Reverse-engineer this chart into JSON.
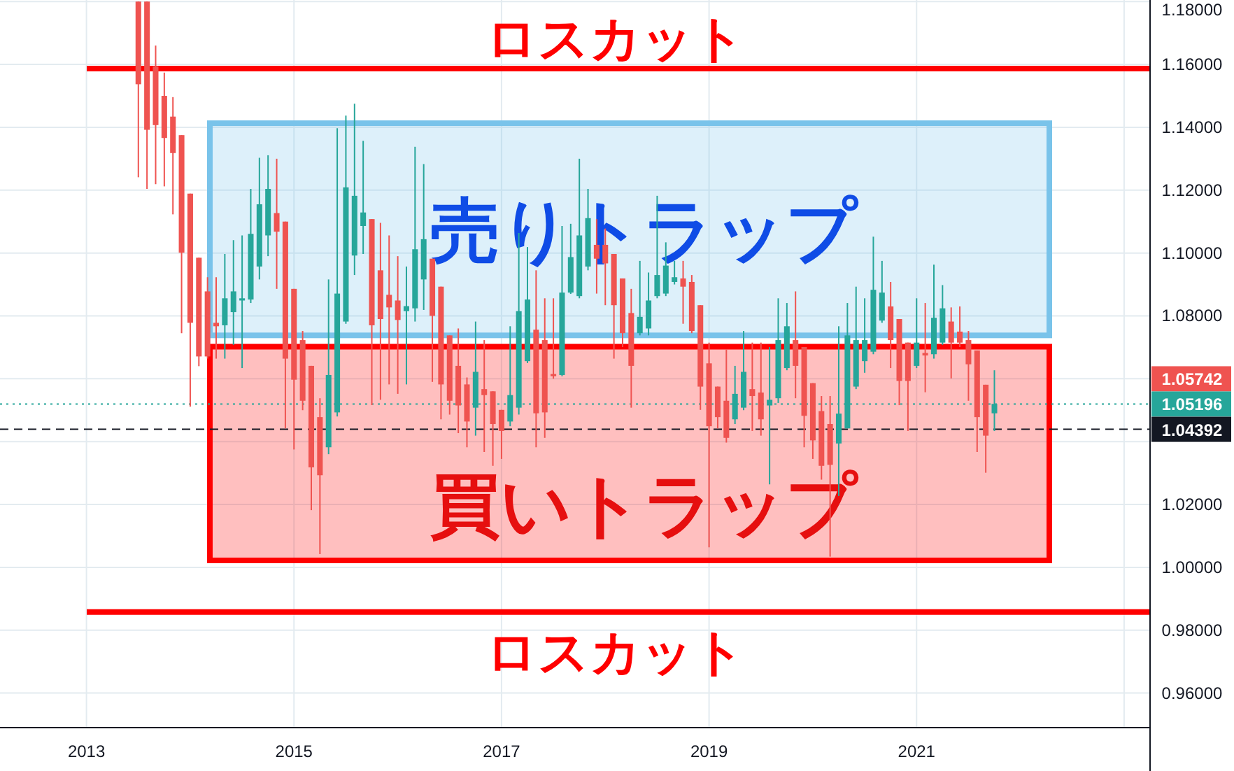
{
  "chart_data": {
    "type": "candlestick",
    "x": [
      "2013-07",
      "2013-08",
      "2013-09",
      "2013-10",
      "2013-11",
      "2013-12",
      "2014-01",
      "2014-02",
      "2014-03",
      "2014-04",
      "2014-05",
      "2014-06",
      "2014-07",
      "2014-08",
      "2014-09",
      "2014-10",
      "2014-11",
      "2014-12",
      "2015-01",
      "2015-02",
      "2015-03",
      "2015-04",
      "2015-05",
      "2015-06",
      "2015-07",
      "2015-08",
      "2015-09",
      "2015-10",
      "2015-11",
      "2015-12",
      "2016-01",
      "2016-02",
      "2016-03",
      "2016-04",
      "2016-05",
      "2016-06",
      "2016-07",
      "2016-08",
      "2016-09",
      "2016-10",
      "2016-11",
      "2016-12",
      "2017-01",
      "2017-02",
      "2017-03",
      "2017-04",
      "2017-05",
      "2017-06",
      "2017-07",
      "2017-08",
      "2017-09",
      "2017-10",
      "2017-11",
      "2017-12",
      "2018-01",
      "2018-02",
      "2018-03",
      "2018-04",
      "2018-05",
      "2018-06",
      "2018-07",
      "2018-08",
      "2018-09",
      "2018-10",
      "2018-11",
      "2018-12",
      "2019-01",
      "2019-02",
      "2019-03",
      "2019-04",
      "2019-05",
      "2019-06",
      "2019-07",
      "2019-08",
      "2019-09",
      "2019-10",
      "2019-11",
      "2019-12",
      "2020-01",
      "2020-02",
      "2020-03",
      "2020-04",
      "2020-05",
      "2020-06",
      "2020-07",
      "2020-08",
      "2020-09",
      "2020-10",
      "2020-11",
      "2020-12",
      "2021-01",
      "2021-02",
      "2021-03",
      "2021-04",
      "2021-05",
      "2021-06",
      "2021-07",
      "2021-08",
      "2021-09",
      "2021-10"
    ],
    "ohlc": [
      [
        1.18,
        1.18,
        1.1241,
        1.1537
      ],
      [
        1.18,
        1.18,
        1.1204,
        1.1392
      ],
      [
        1.1594,
        1.166,
        1.1219,
        1.1407
      ],
      [
        1.15,
        1.1574,
        1.1212,
        1.1366
      ],
      [
        1.1434,
        1.1496,
        1.1123,
        1.1318
      ],
      [
        1.1375,
        1.1375,
        1.0745,
        1.1001
      ],
      [
        1.1189,
        1.1189,
        1.0511,
        1.0778
      ],
      [
        1.0985,
        1.0985,
        1.064,
        1.0671
      ],
      [
        1.0878,
        1.0923,
        1.0664,
        1.0671
      ],
      [
        1.0778,
        1.0923,
        1.0664,
        1.0767
      ],
      [
        1.077,
        1.0997,
        1.0664,
        1.0856
      ],
      [
        1.0812,
        1.1041,
        1.0708,
        1.0878
      ],
      [
        1.0849,
        1.1056,
        1.0634,
        1.0856
      ],
      [
        1.0852,
        1.1204,
        1.0841,
        1.1061
      ],
      [
        1.0957,
        1.1303,
        1.0916,
        1.1155
      ],
      [
        1.1056,
        1.1311,
        1.099,
        1.1204
      ],
      [
        1.1127,
        1.13,
        1.0886,
        1.1068
      ],
      [
        1.11,
        1.11,
        1.0442,
        1.0664
      ],
      [
        1.0886,
        1.0886,
        1.0375,
        1.0597
      ],
      [
        1.0723,
        1.0752,
        1.05,
        1.053
      ],
      [
        1.0641,
        1.0641,
        1.0182,
        1.0318
      ],
      [
        1.0478,
        1.0538,
        1.0042,
        1.0293
      ],
      [
        1.0382,
        1.0916,
        1.036,
        1.0612
      ],
      [
        1.0493,
        1.1397,
        1.048,
        1.0871
      ],
      [
        1.0782,
        1.1437,
        1.0775,
        1.1209
      ],
      [
        1.0992,
        1.1475,
        1.093,
        1.1182
      ],
      [
        1.1086,
        1.1357,
        1.0997,
        1.1129
      ],
      [
        1.1108,
        1.1108,
        1.0516,
        1.077
      ],
      [
        1.0945,
        1.1096,
        1.0533,
        1.079
      ],
      [
        1.0867,
        1.1056,
        1.0582,
        1.0827
      ],
      [
        1.0849,
        1.099,
        1.0552,
        1.0787
      ],
      [
        1.0815,
        1.0957,
        1.0582,
        1.0831
      ],
      [
        1.0824,
        1.1338,
        1.0782,
        1.1012
      ],
      [
        1.0916,
        1.1283,
        1.0819,
        1.1044
      ],
      [
        1.0982,
        1.0982,
        1.059,
        1.08
      ],
      [
        1.0893,
        1.0893,
        1.0471,
        1.0582
      ],
      [
        1.0738,
        1.0738,
        1.0486,
        1.053
      ],
      [
        1.0641,
        1.076,
        1.0427,
        1.0515
      ],
      [
        1.0582,
        1.0604,
        1.0382,
        1.0464
      ],
      [
        1.0508,
        1.0782,
        1.0419,
        1.0622
      ],
      [
        1.0567,
        1.0723,
        1.0367,
        1.0548
      ],
      [
        1.056,
        1.056,
        1.0323,
        1.0456
      ],
      [
        1.0501,
        1.0501,
        1.0345,
        1.0434
      ],
      [
        1.0464,
        1.0767,
        1.0449,
        1.0548
      ],
      [
        1.0508,
        1.1064,
        1.0486,
        1.0815
      ],
      [
        1.0656,
        1.1019,
        1.065,
        1.0852
      ],
      [
        1.0756,
        1.0945,
        1.0382,
        1.049
      ],
      [
        1.0723,
        1.0856,
        1.0412,
        1.0493
      ],
      [
        1.0615,
        1.0856,
        1.06,
        1.0608
      ],
      [
        1.0612,
        1.1086,
        1.0608,
        1.0874
      ],
      [
        1.0874,
        1.1093,
        1.087,
        1.0987
      ],
      [
        1.0863,
        1.13,
        1.0856,
        1.1056
      ],
      [
        1.0957,
        1.1204,
        1.0945,
        1.1111
      ],
      [
        1.1026,
        1.1108,
        1.0871,
        1.0982
      ],
      [
        1.1026,
        1.1078,
        1.0834,
        1.0967
      ],
      [
        1.0997,
        1.0997,
        1.0664,
        1.0834
      ],
      [
        1.0919,
        1.0919,
        1.0701,
        1.0745
      ],
      [
        1.0809,
        1.0886,
        1.0508,
        1.0641
      ],
      [
        1.0745,
        1.0975,
        1.0738,
        1.0797
      ],
      [
        1.076,
        1.0938,
        1.0738,
        1.0849
      ],
      [
        1.0863,
        1.1182,
        1.0856,
        1.093
      ],
      [
        1.0871,
        1.1034,
        1.0863,
        1.096
      ],
      [
        1.0908,
        1.0975,
        1.09,
        1.0923
      ],
      [
        1.0919,
        1.0975,
        1.0775,
        1.0893
      ],
      [
        1.0908,
        1.093,
        1.0745,
        1.0752
      ],
      [
        1.0834,
        1.0834,
        1.0501,
        1.0575
      ],
      [
        1.0649,
        1.0715,
        1.0064,
        1.0449
      ],
      [
        1.0575,
        1.0575,
        1.0442,
        1.0478
      ],
      [
        1.053,
        1.0693,
        1.0397,
        1.0412
      ],
      [
        1.0471,
        1.0641,
        1.0456,
        1.0552
      ],
      [
        1.0508,
        1.0752,
        1.05,
        1.0622
      ],
      [
        1.0567,
        1.0715,
        1.0434,
        1.0545
      ],
      [
        1.0556,
        1.0715,
        1.0419,
        1.0471
      ],
      [
        1.0515,
        1.0701,
        1.0264,
        1.0533
      ],
      [
        1.0538,
        1.0856,
        1.0523,
        1.0723
      ],
      [
        1.0634,
        1.0841,
        1.0627,
        1.0767
      ],
      [
        1.0723,
        1.0878,
        1.0538,
        1.0641
      ],
      [
        1.0701,
        1.0701,
        1.0382,
        1.0482
      ],
      [
        1.0586,
        1.0586,
        1.0345,
        1.0404
      ],
      [
        1.0497,
        1.0545,
        1.0279,
        1.0323
      ],
      [
        1.0456,
        1.0545,
        1.0034,
        1.0326
      ],
      [
        1.0394,
        1.0767,
        1.0227,
        1.0489
      ],
      [
        1.0442,
        1.0841,
        1.0442,
        1.0738
      ],
      [
        1.0575,
        1.0893,
        1.0567,
        1.0723
      ],
      [
        1.0656,
        1.0856,
        1.0619,
        1.0723
      ],
      [
        1.0686,
        1.1052,
        1.0678,
        1.0883
      ],
      [
        1.0785,
        1.0975,
        1.0778,
        1.0874
      ],
      [
        1.083,
        1.0908,
        1.0634,
        1.0723
      ],
      [
        1.079,
        1.079,
        1.0516,
        1.0593
      ],
      [
        1.0715,
        1.0715,
        1.0434,
        1.0593
      ],
      [
        1.0641,
        1.0856,
        1.0634,
        1.0715
      ],
      [
        1.0682,
        1.0841,
        1.0557,
        1.0674
      ],
      [
        1.0678,
        1.0963,
        1.0664,
        1.0794
      ],
      [
        1.0715,
        1.0898,
        1.0708,
        1.0824
      ],
      [
        1.0782,
        1.0827,
        1.0601,
        1.0715
      ],
      [
        1.075,
        1.083,
        1.0701,
        1.0715
      ],
      [
        1.0723,
        1.0752,
        1.053,
        1.0646
      ],
      [
        1.069,
        1.069,
        1.0367,
        1.0478
      ],
      [
        1.0581,
        1.0581,
        1.0301,
        1.0419
      ],
      [
        1.049,
        1.0627,
        1.0434,
        1.052
      ]
    ],
    "xlim": [
      "2012-03",
      "2023-04"
    ],
    "xticks": [
      {
        "value": "2013",
        "label": "2013"
      },
      {
        "value": "2015",
        "label": "2015"
      },
      {
        "value": "2017",
        "label": "2017"
      },
      {
        "value": "2019",
        "label": "2019"
      },
      {
        "value": "2021",
        "label": "2021"
      },
      {
        "value": "2023",
        "label": null
      }
    ],
    "ylim": [
      0.949,
      1.1805
    ],
    "yticks": [
      {
        "value": 0.96,
        "label": "0.96000"
      },
      {
        "value": 0.98,
        "label": "0.98000"
      },
      {
        "value": 1.0,
        "label": "1.00000"
      },
      {
        "value": 1.02,
        "label": "1.02000"
      },
      {
        "value": 1.04,
        "label": null
      },
      {
        "value": 1.06,
        "label": null
      },
      {
        "value": 1.08,
        "label": "1.08000"
      },
      {
        "value": 1.1,
        "label": "1.10000"
      },
      {
        "value": 1.12,
        "label": "1.12000"
      },
      {
        "value": 1.14,
        "label": "1.14000"
      },
      {
        "value": 1.16,
        "label": "1.16000"
      },
      {
        "value": 1.18,
        "label": "1.18000"
      }
    ],
    "grid": true,
    "bands": [
      {
        "axis": "y",
        "from": 1.0738,
        "to": 1.1413,
        "label": "売りトラップ",
        "color": "#79c3ea"
      },
      {
        "axis": "y",
        "from": 1.0022,
        "to": 1.0702,
        "label": "買いトラップ",
        "color": "#ff0000"
      }
    ],
    "ref_lines": [
      {
        "axis": "y",
        "value": 1.1587,
        "label": "ロスカット",
        "color": "#ff0000",
        "line_style": "solid"
      },
      {
        "axis": "y",
        "value": 0.9858,
        "label": "ロスカット",
        "color": "#ff0000",
        "line_style": "solid"
      },
      {
        "axis": "y",
        "value": 1.05196,
        "label": "1.05196",
        "color": "#26a69a",
        "line_style": "dotted"
      },
      {
        "axis": "y",
        "value": 1.04392,
        "label": "1.04392",
        "color": "#131722",
        "line_style": "dashed"
      }
    ],
    "annotations": [
      "1.05742"
    ]
  }
}
